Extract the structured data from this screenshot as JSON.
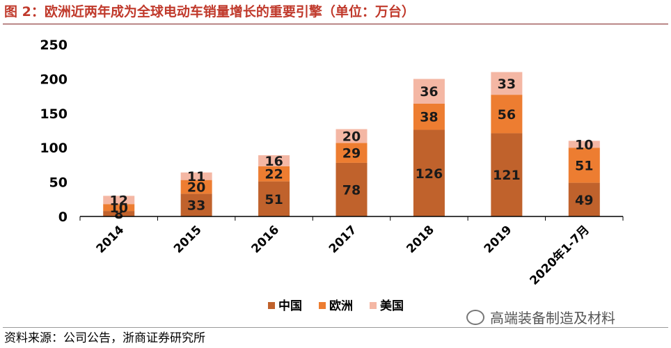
{
  "title": "图 2：欧洲近两年成为全球电动车销量增长的重要引擎（单位：万台）",
  "source": "资料来源：公司公告，浙商证券研究所",
  "watermark": "高端装备制造及材料",
  "colors": {
    "china": "#C0622C",
    "europe": "#ED7D31",
    "usa": "#F4B7A4",
    "title": "#C0392B"
  },
  "chart_data": {
    "type": "bar",
    "stacked": true,
    "categories": [
      "2014",
      "2015",
      "2016",
      "2017",
      "2018",
      "2019",
      "2020年1-7月"
    ],
    "series": [
      {
        "name": "中国",
        "values": [
          8,
          33,
          51,
          78,
          126,
          121,
          49
        ]
      },
      {
        "name": "欧洲",
        "values": [
          10,
          20,
          22,
          29,
          38,
          56,
          51
        ]
      },
      {
        "name": "美国",
        "values": [
          12,
          11,
          16,
          20,
          36,
          33,
          10
        ]
      }
    ],
    "ylim": [
      0,
      250
    ],
    "yticks": [
      0,
      50,
      100,
      150,
      200,
      250
    ],
    "grid": false,
    "legend_position": "bottom"
  }
}
